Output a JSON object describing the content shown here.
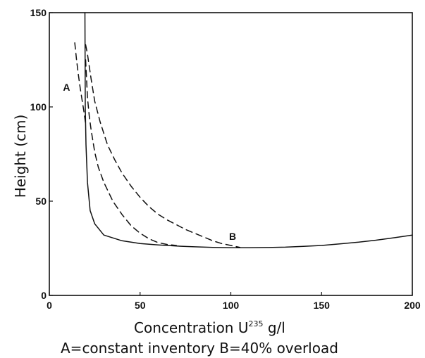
{
  "chart_data": {
    "type": "line",
    "xlabel": "Concentration U",
    "xlabel_sup": "235",
    "xlabel_unit": " g/l",
    "ylabel": "Height (cm)",
    "caption": "A=constant inventory  B=40% overload",
    "xlim": [
      0,
      200
    ],
    "ylim": [
      0,
      150
    ],
    "x_ticks": [
      0,
      50,
      100,
      150,
      200
    ],
    "y_ticks": [
      0,
      50,
      100,
      150
    ],
    "x_tick_labels": [
      "0",
      "50",
      "100",
      "150",
      "200"
    ],
    "y_tick_labels": [
      "0",
      "50",
      "100",
      "150"
    ],
    "grid": false,
    "series": [
      {
        "style": "solid",
        "x": [
          19.6,
          19.8,
          20.2,
          21.0,
          22.5,
          25,
          30,
          40,
          50,
          60,
          70,
          80,
          90,
          100,
          110,
          120,
          130,
          140,
          150,
          160,
          170,
          180,
          190,
          200
        ],
        "y": [
          150,
          100,
          80,
          60,
          45,
          38,
          32,
          29,
          27.5,
          26.8,
          26.2,
          25.8,
          25.5,
          25.3,
          25.3,
          25.4,
          25.6,
          26,
          26.5,
          27.3,
          28.2,
          29.3,
          30.6,
          32
        ]
      },
      {
        "style": "dashed",
        "x": [
          20,
          21,
          22,
          23,
          25,
          27,
          30,
          35,
          40,
          45,
          50,
          55,
          60,
          65,
          70
        ],
        "y": [
          125,
          105,
          95,
          88,
          76,
          68,
          60,
          50,
          43,
          37,
          33,
          30,
          28,
          27,
          26.5
        ]
      },
      {
        "style": "dashed",
        "x": [
          20,
          21,
          23,
          25,
          28,
          32,
          36,
          40,
          45,
          50,
          55,
          60,
          65,
          70,
          75,
          80,
          85,
          90,
          95,
          100,
          105
        ],
        "y": [
          133,
          128,
          115,
          103,
          92,
          80,
          72,
          65,
          58,
          52,
          47,
          43,
          40,
          37.5,
          35,
          33,
          31,
          29,
          27.5,
          26.5,
          25.5
        ]
      },
      {
        "style": "dashed",
        "x": [
          14,
          15,
          16,
          17,
          18,
          19,
          20
        ],
        "y": [
          134,
          125,
          117,
          110,
          104,
          98,
          91
        ]
      }
    ],
    "annotations": [
      {
        "text": "A",
        "x": 9.5,
        "y": 108.5
      },
      {
        "text": "B",
        "x": 101,
        "y": 29.5
      }
    ]
  }
}
